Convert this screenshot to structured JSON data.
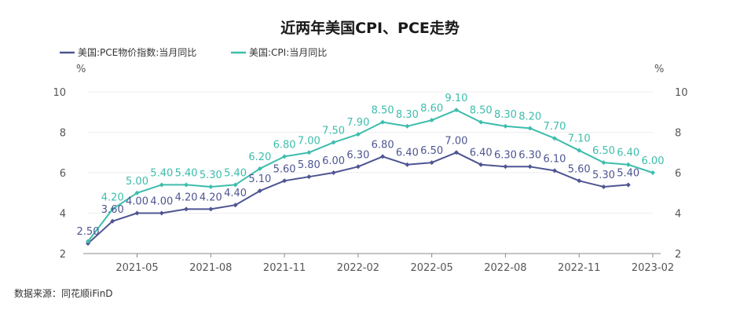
{
  "chart_data": {
    "type": "line",
    "title": "近两年美国CPI、PCE走势",
    "x": [
      "2021-03",
      "2021-04",
      "2021-05",
      "2021-06",
      "2021-07",
      "2021-08",
      "2021-09",
      "2021-10",
      "2021-11",
      "2021-12",
      "2022-01",
      "2022-02",
      "2022-03",
      "2022-04",
      "2022-05",
      "2022-06",
      "2022-07",
      "2022-08",
      "2022-09",
      "2022-10",
      "2022-11",
      "2022-12",
      "2023-01",
      "2023-02"
    ],
    "x_tick_labels": [
      "2021-05",
      "2021-08",
      "2021-11",
      "2022-02",
      "2022-05",
      "2022-08",
      "2022-11",
      "2023-02"
    ],
    "y_left_label": "%",
    "y_right_label": "%",
    "ylim": [
      2,
      10
    ],
    "y_ticks": [
      2,
      4,
      6,
      8,
      10
    ],
    "grid": true,
    "legend_position": "top-left",
    "series": [
      {
        "name": "美国:PCE物价指数:当月同比",
        "color": "#4e5592",
        "values": [
          2.5,
          3.6,
          4.0,
          4.0,
          4.2,
          4.2,
          4.4,
          5.1,
          5.6,
          5.8,
          6.0,
          6.3,
          6.8,
          6.4,
          6.5,
          7.0,
          6.4,
          6.3,
          6.3,
          6.1,
          5.6,
          5.3,
          5.4,
          null
        ],
        "labels": [
          "2.50",
          "3.60",
          "4.00",
          "4.00",
          "4.20",
          "4.20",
          "4.40",
          "5.10",
          "5.60",
          "5.80",
          "6.00",
          "6.30",
          "6.80",
          "6.40",
          "6.50",
          "7.00",
          "6.40",
          "6.30",
          "6.30",
          "6.10",
          "5.60",
          "5.30",
          "5.40",
          ""
        ]
      },
      {
        "name": "美国:CPI:当月同比",
        "color": "#3dbdac",
        "values": [
          2.6,
          4.2,
          5.0,
          5.4,
          5.4,
          5.3,
          5.4,
          6.2,
          6.8,
          7.0,
          7.5,
          7.9,
          8.5,
          8.3,
          8.6,
          9.1,
          8.5,
          8.3,
          8.2,
          7.7,
          7.1,
          6.5,
          6.4,
          6.0
        ],
        "labels": [
          "",
          "4.20",
          "5.00",
          "5.40",
          "5.40",
          "5.30",
          "5.40",
          "6.20",
          "6.80",
          "7.00",
          "7.50",
          "7.90",
          "8.50",
          "8.30",
          "8.60",
          "9.10",
          "8.50",
          "8.30",
          "8.20",
          "7.70",
          "7.10",
          "6.50",
          "6.40",
          "6.00"
        ]
      }
    ]
  },
  "source_text": "数据来源：同花顺iFinD"
}
